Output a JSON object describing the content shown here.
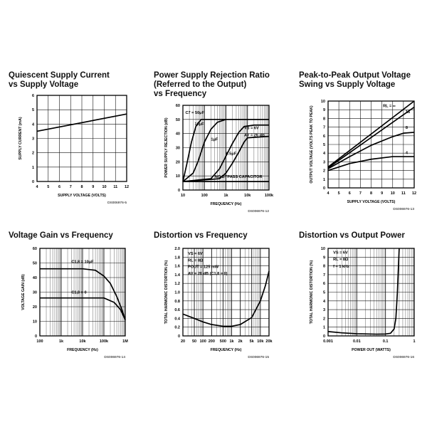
{
  "chart_data": [
    {
      "id": "c1",
      "type": "line",
      "title": "Quiescent Supply Current\nvs Supply Voltage",
      "xlabel": "SUPPLY VOLTAGE (VOLTS)",
      "ylabel": "SUPPLY CURRENT (mA)",
      "caption": "DS006976-5",
      "xscale": "linear",
      "xlim": [
        4,
        12
      ],
      "xticks": [
        4,
        5,
        6,
        7,
        8,
        9,
        10,
        11,
        12
      ],
      "xtick_labels": [
        "4",
        "5",
        "6",
        "7",
        "8",
        "9",
        "10",
        "11",
        "12"
      ],
      "yscale": "linear",
      "ylim": [
        0,
        6
      ],
      "yticks": [
        0,
        1,
        2,
        3,
        4,
        5,
        6
      ],
      "ytick_labels": [
        "0",
        "1",
        "2",
        "3",
        "4",
        "5",
        "6"
      ],
      "grid": true,
      "series": [
        {
          "points": [
            [
              4,
              3.5
            ],
            [
              12,
              4.7
            ]
          ]
        }
      ],
      "annotations": []
    },
    {
      "id": "c2",
      "type": "line",
      "title": "Power Supply Rejection Ratio\n(Referred to the Output)\nvs Frequency",
      "xlabel": "FREQUENCY (Hz)",
      "ylabel": "POWER SUPPLY REJECTION (dB)",
      "caption": "DS006976-12",
      "xscale": "log",
      "xlim": [
        10,
        100000
      ],
      "xticks": [
        10,
        100,
        1000,
        10000,
        100000
      ],
      "xtick_labels": [
        "10",
        "100",
        "1k",
        "10k",
        "100k"
      ],
      "yscale": "linear",
      "ylim": [
        0,
        60
      ],
      "yticks": [
        0,
        10,
        20,
        30,
        40,
        50,
        60
      ],
      "ytick_labels": [
        "0",
        "10",
        "20",
        "30",
        "40",
        "50",
        "60"
      ],
      "grid": true,
      "series": [
        {
          "name": "C7 = 50μF",
          "points": [
            [
              10,
              6
            ],
            [
              15,
              18
            ],
            [
              25,
              34
            ],
            [
              40,
              45
            ],
            [
              70,
              50
            ],
            [
              100000,
              50
            ]
          ]
        },
        {
          "name": "10μF",
          "points": [
            [
              10,
              6
            ],
            [
              30,
              12
            ],
            [
              50,
              20
            ],
            [
              100,
              34
            ],
            [
              200,
              43
            ],
            [
              400,
              48
            ],
            [
              1000,
              50
            ],
            [
              100000,
              50
            ]
          ]
        },
        {
          "name": "1μF",
          "points": [
            [
              10,
              6
            ],
            [
              200,
              8
            ],
            [
              500,
              15
            ],
            [
              1000,
              24
            ],
            [
              2000,
              33
            ],
            [
              4000,
              41
            ],
            [
              7000,
              45
            ],
            [
              20000,
              46
            ],
            [
              100000,
              46
            ]
          ]
        },
        {
          "name": "0.5μF",
          "points": [
            [
              10,
              6
            ],
            [
              500,
              8
            ],
            [
              1000,
              12
            ],
            [
              2000,
              19
            ],
            [
              4000,
              27
            ],
            [
              7000,
              34
            ],
            [
              10000,
              37
            ],
            [
              100000,
              38
            ]
          ]
        },
        {
          "name": "NO BYPASS CAPACITOR",
          "points": [
            [
              10,
              6
            ],
            [
              100000,
              6
            ]
          ]
        }
      ],
      "annotations": [
        {
          "text": "C7 = 50μF",
          "x": 13,
          "y": 54
        },
        {
          "text": "10μF",
          "x": 35,
          "y": 46
        },
        {
          "text": "1μF",
          "x": 200,
          "y": 35
        },
        {
          "text": "0.5μF",
          "x": 1000,
          "y": 25
        },
        {
          "text": "VS = 6V",
          "x": 7000,
          "y": 43
        },
        {
          "text": "AV = 26 dB",
          "x": 7000,
          "y": 38
        },
        {
          "text": "NO BYPASS CAPACITOR",
          "x": 300,
          "y": 8.5
        }
      ]
    },
    {
      "id": "c3",
      "type": "line",
      "title": "Peak-to-Peak Output Voltage\nSwing vs Supply Voltage",
      "xlabel": "SUPPLY VOLTAGE (VOLTS)",
      "ylabel": "OUTPUT VOLTAGE (VOLTS PEAK TO PEAK)",
      "caption": "DS006976-13",
      "xscale": "linear",
      "xlim": [
        4,
        12
      ],
      "xticks": [
        4,
        5,
        6,
        7,
        8,
        9,
        10,
        11,
        12
      ],
      "xtick_labels": [
        "4",
        "5",
        "6",
        "7",
        "8",
        "9",
        "10",
        "11",
        "12"
      ],
      "yscale": "linear",
      "ylim": [
        0,
        10
      ],
      "yticks": [
        0,
        1,
        2,
        3,
        4,
        5,
        6,
        7,
        8,
        9,
        10
      ],
      "ytick_labels": [
        "0",
        "1",
        "2",
        "3",
        "4",
        "5",
        "6",
        "7",
        "8",
        "9",
        "10"
      ],
      "grid": true,
      "series": [
        {
          "name": "RL = ∞",
          "points": [
            [
              4,
              2.4
            ],
            [
              12,
              10
            ]
          ]
        },
        {
          "name": "16",
          "points": [
            [
              4,
              2.3
            ],
            [
              12,
              9.3
            ]
          ]
        },
        {
          "name": "8",
          "points": [
            [
              4,
              2.2
            ],
            [
              6,
              3.6
            ],
            [
              8,
              4.9
            ],
            [
              10,
              5.9
            ],
            [
              11,
              6.3
            ],
            [
              12,
              6.4
            ]
          ]
        },
        {
          "name": "4",
          "points": [
            [
              4,
              2.0
            ],
            [
              6,
              2.8
            ],
            [
              8,
              3.3
            ],
            [
              10,
              3.6
            ],
            [
              12,
              3.6
            ]
          ]
        }
      ],
      "annotations": [
        {
          "text": "RL = ∞",
          "x": 9.1,
          "y": 9.3
        },
        {
          "text": "16",
          "x": 11.2,
          "y": 8.6
        },
        {
          "text": "8",
          "x": 11.2,
          "y": 6.8
        },
        {
          "text": "4",
          "x": 11.2,
          "y": 3.9
        }
      ]
    },
    {
      "id": "c4",
      "type": "line",
      "title": "Voltage Gain vs Frequency",
      "xlabel": "FREQUENCY (Hz)",
      "ylabel": "VOLTAGE GAIN (dB)",
      "caption": "DS006976-14",
      "xscale": "log",
      "xlim": [
        100,
        1000000
      ],
      "xticks": [
        100,
        1000,
        10000,
        100000,
        1000000
      ],
      "xtick_labels": [
        "100",
        "1k",
        "10k",
        "100k",
        "1M"
      ],
      "yscale": "linear",
      "ylim": [
        0,
        60
      ],
      "yticks": [
        0,
        10,
        20,
        30,
        40,
        50,
        60
      ],
      "ytick_labels": [
        "0",
        "10",
        "20",
        "30",
        "40",
        "50",
        "60"
      ],
      "grid": true,
      "series": [
        {
          "name": "C1,8 = 10μF",
          "points": [
            [
              100,
              46
            ],
            [
              10000,
              46
            ],
            [
              40000,
              45
            ],
            [
              100000,
              41
            ],
            [
              200000,
              36
            ],
            [
              400000,
              27
            ],
            [
              700000,
              18
            ],
            [
              1000000,
              11
            ]
          ]
        },
        {
          "name": "C1,8 = 0",
          "points": [
            [
              100,
              26
            ],
            [
              100000,
              26
            ],
            [
              300000,
              23
            ],
            [
              600000,
              18
            ],
            [
              1000000,
              11
            ]
          ]
        }
      ],
      "annotations": [
        {
          "text": "C1,8 = 10μF",
          "x": 3000,
          "y": 50
        },
        {
          "text": "C1,8 = 0",
          "x": 3000,
          "y": 29
        }
      ]
    },
    {
      "id": "c5",
      "type": "line",
      "title": "Distortion vs Frequency",
      "xlabel": "FREQUENCY (Hz)",
      "ylabel": "TOTAL HARMONIC DISTORTION (%)",
      "caption": "DS006976-15",
      "xscale": "log",
      "xlim": [
        20,
        20000
      ],
      "xticks": [
        20,
        50,
        100,
        200,
        500,
        1000,
        2000,
        5000,
        10000,
        20000
      ],
      "xtick_labels": [
        "20",
        "50",
        "100",
        "200",
        "500",
        "1k",
        "2k",
        "5k",
        "10k",
        "20k"
      ],
      "yscale": "linear",
      "ylim": [
        0,
        2.0
      ],
      "yticks": [
        0,
        0.2,
        0.4,
        0.6,
        0.8,
        1.0,
        1.2,
        1.4,
        1.6,
        1.8,
        2.0
      ],
      "ytick_labels": [
        "0",
        "0.2",
        "0.4",
        "0.6",
        "0.8",
        "1.0",
        "1.2",
        "1.4",
        "1.6",
        "1.8",
        "2.0"
      ],
      "grid": true,
      "series": [
        {
          "points": [
            [
              20,
              0.5
            ],
            [
              50,
              0.4
            ],
            [
              100,
              0.32
            ],
            [
              200,
              0.26
            ],
            [
              500,
              0.22
            ],
            [
              1000,
              0.22
            ],
            [
              2000,
              0.26
            ],
            [
              5000,
              0.42
            ],
            [
              10000,
              0.8
            ],
            [
              15000,
              1.15
            ],
            [
              20000,
              1.48
            ]
          ]
        }
      ],
      "annotations": [
        {
          "text": "VS = 6V",
          "x": 30,
          "y": 1.85
        },
        {
          "text": "RL = 8Ω",
          "x": 30,
          "y": 1.7
        },
        {
          "text": "POUT = 125 mW",
          "x": 30,
          "y": 1.55
        },
        {
          "text": "AV = 26 dB (C1,8 = 0)",
          "x": 30,
          "y": 1.4
        }
      ]
    },
    {
      "id": "c6",
      "type": "line",
      "title": "Distortion vs Output Power",
      "xlabel": "POWER OUT (WATTS)",
      "ylabel": "TOTAL HARMONIC DISTORTION (%)",
      "caption": "DS006976-16",
      "xscale": "log",
      "xlim": [
        0.001,
        1
      ],
      "xticks": [
        0.001,
        0.01,
        0.1,
        1
      ],
      "xtick_labels": [
        "0.001",
        "0.01",
        "0.1",
        "1"
      ],
      "yscale": "linear",
      "ylim": [
        0,
        10
      ],
      "yticks": [
        0,
        1,
        2,
        3,
        4,
        5,
        6,
        7,
        8,
        9,
        10
      ],
      "ytick_labels": [
        "0",
        "1",
        "2",
        "3",
        "4",
        "5",
        "6",
        "7",
        "8",
        "9",
        "10"
      ],
      "grid": true,
      "series": [
        {
          "points": [
            [
              0.001,
              0.5
            ],
            [
              0.003,
              0.35
            ],
            [
              0.01,
              0.25
            ],
            [
              0.05,
              0.2
            ],
            [
              0.1,
              0.22
            ],
            [
              0.15,
              0.3
            ],
            [
              0.2,
              0.8
            ],
            [
              0.23,
              2
            ],
            [
              0.26,
              5
            ],
            [
              0.3,
              10
            ]
          ]
        }
      ],
      "annotations": [
        {
          "text": "VS = 6V",
          "x": 0.0015,
          "y": 9.4
        },
        {
          "text": "RL = 8Ω",
          "x": 0.0015,
          "y": 8.6
        },
        {
          "text": "f = 1 kHz",
          "x": 0.0015,
          "y": 7.8
        }
      ]
    }
  ]
}
